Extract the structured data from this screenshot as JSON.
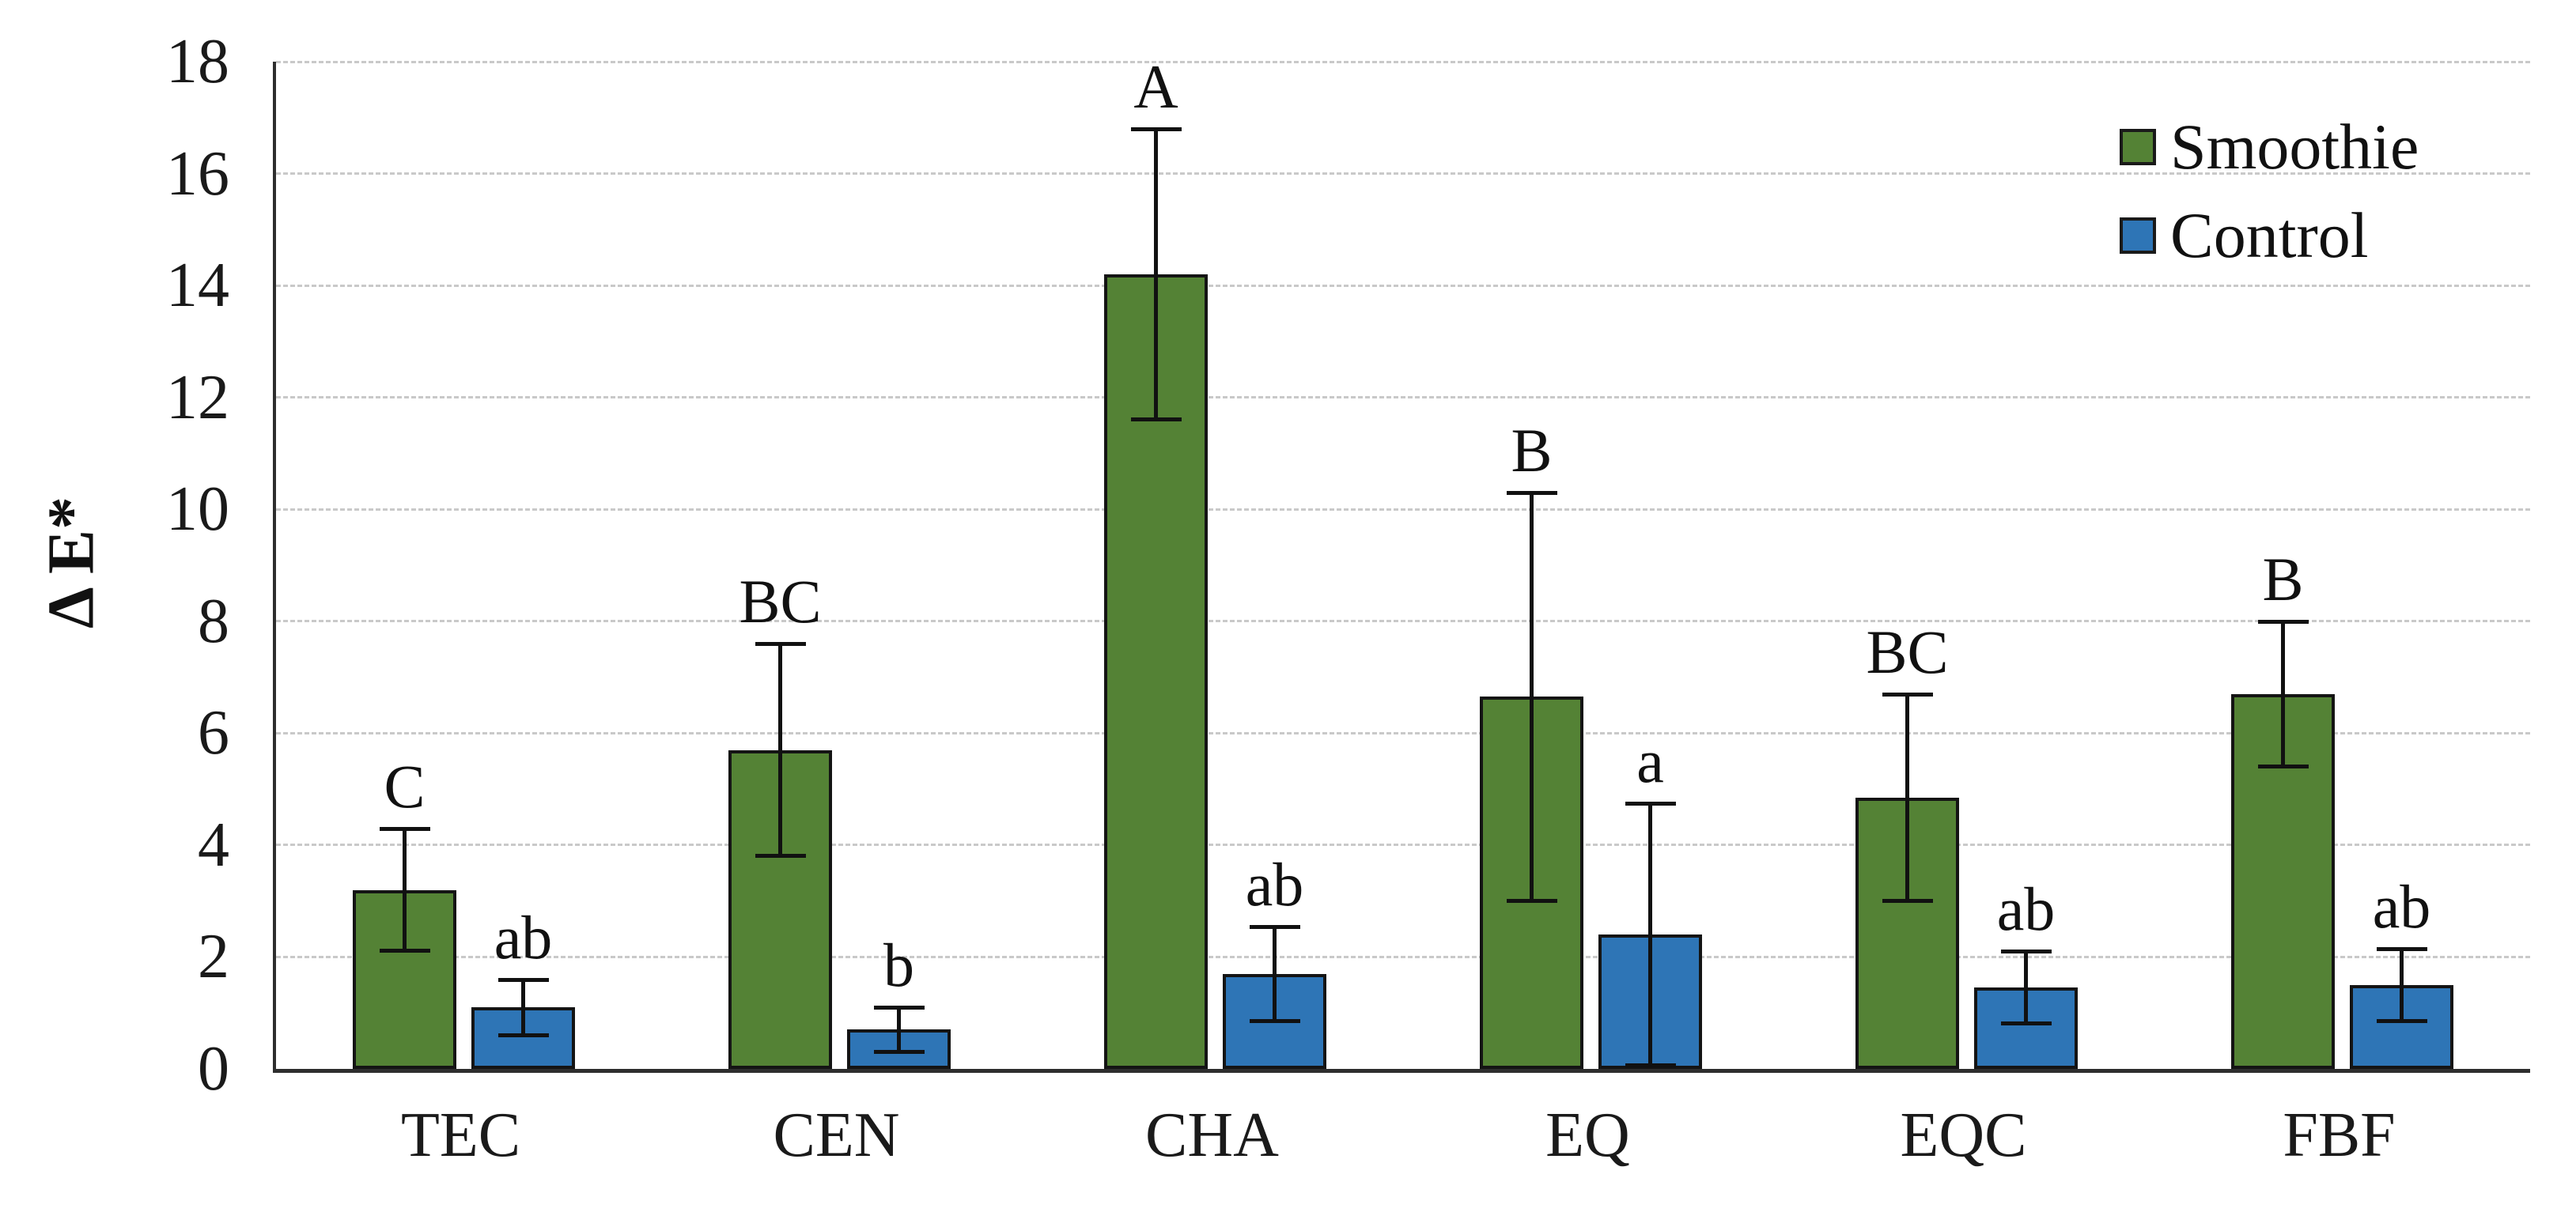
{
  "chart_data": {
    "type": "bar",
    "title": "",
    "xlabel": "",
    "ylabel": "Δ E*",
    "ylim": [
      0,
      18
    ],
    "yticks": [
      0,
      2,
      4,
      6,
      8,
      10,
      12,
      14,
      16,
      18
    ],
    "grid": "horizontal-dashed",
    "legend_position": "top-right",
    "categories": [
      "TEC",
      "CEN",
      "CHA",
      "EQ",
      "EQC",
      "FBF"
    ],
    "series": [
      {
        "name": "Smoothie",
        "color": "#548235",
        "values": [
          3.2,
          5.7,
          14.2,
          6.65,
          4.85,
          6.7
        ],
        "errors": [
          1.1,
          1.9,
          2.6,
          3.65,
          1.85,
          1.3
        ],
        "letters": [
          "C",
          "BC",
          "A",
          "B",
          "BC",
          "B"
        ]
      },
      {
        "name": "Control",
        "color": "#2E75B6",
        "values": [
          1.1,
          0.7,
          1.7,
          2.4,
          1.45,
          1.5
        ],
        "errors": [
          0.5,
          0.4,
          0.85,
          2.35,
          0.65,
          0.65
        ],
        "letters": [
          "ab",
          "b",
          "ab",
          "a",
          "ab",
          "ab"
        ]
      }
    ],
    "colors": {
      "axis": "#2e2e2e",
      "gridline": "#c9c9c9",
      "bar_outline": "#141414",
      "error_bar": "#111111",
      "text": "#1a1a1a",
      "background": "#ffffff"
    }
  }
}
